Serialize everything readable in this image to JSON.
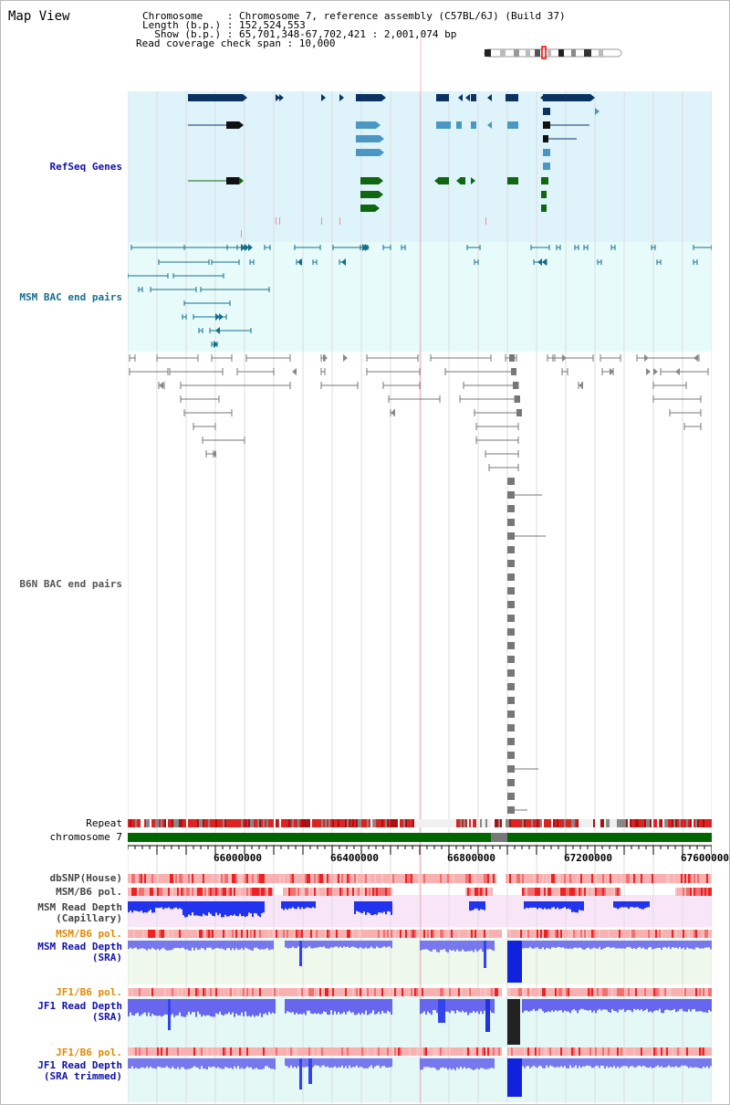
{
  "title": "Map View",
  "info": {
    "chromosome_line": "Chromosome    : Chromosome 7, reference assembly (C57BL/6J) (Build 37)",
    "length_line": "Length (b.p.) : 152,524,553",
    "show_line": "  Show (b.p.) : 65,701,348-67,702,421 : 2,001,074 bp",
    "coverage_line": "Read coverage check span : 10,000"
  },
  "tracks": {
    "refseq": "RefSeq Genes",
    "msm_bac": "MSM BAC end pairs",
    "b6n_bac": "B6N BAC end pairs",
    "repeat": "Repeat",
    "chromosome": "chromosome 7",
    "dbsnp": "dbSNP(House)",
    "msm_b6_pol": "MSM/B6 pol.",
    "msm_depth_cap": "MSM Read Depth\n(Capillary)",
    "msm_b6_pol_2": "MSM/B6 pol.",
    "msm_depth_sra": "MSM Read Depth\n(SRA)",
    "jf1_b6_pol": "JF1/B6 pol.",
    "jf1_depth_sra": "JF1 Read Depth\n(SRA)",
    "jf1_b6_pol_2": "JF1/B6 pol.",
    "jf1_depth_trim": "JF1 Read Depth\n(SRA trimmed)"
  },
  "axis_ticks": [
    "66000000",
    "66400000",
    "66800000",
    "67200000",
    "67600000"
  ],
  "colors": {
    "refseq_bg": "#dff3fb",
    "msm_bg": "#e7fbfb",
    "gene_dark": "#0c3262",
    "gene_mid": "#4a97c3",
    "gene_green": "#116611",
    "msm_bac": "#156f8c",
    "b6n_bac": "#666666",
    "chromosome_bar": "#006600",
    "depth_blue": "#2233ee",
    "depth_light": "#7777ee"
  }
}
